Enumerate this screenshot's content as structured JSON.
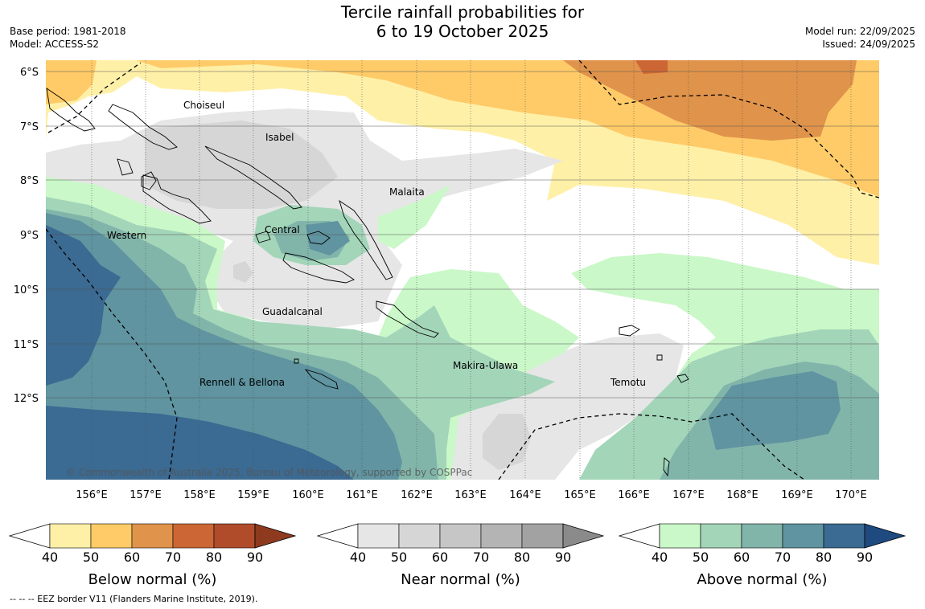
{
  "title": {
    "line1": "Tercile rainfall probabilities for",
    "line2": "6 to 19 October 2025"
  },
  "meta_left": {
    "base_period": "Base period: 1981-2018",
    "model": "Model: ACCESS-S2"
  },
  "meta_right": {
    "model_run": "Model run: 22/09/2025",
    "issued": "Issued: 24/09/2025"
  },
  "map": {
    "lat_labels": [
      "6°S",
      "7°S",
      "8°S",
      "9°S",
      "10°S",
      "11°S",
      "12°S"
    ],
    "lon_labels": [
      "156°E",
      "157°E",
      "158°E",
      "159°E",
      "160°E",
      "161°E",
      "162°E",
      "163°E",
      "164°E",
      "165°E",
      "166°E",
      "167°E",
      "168°E",
      "169°E",
      "170°E"
    ],
    "provinces": [
      {
        "name": "Choiseul"
      },
      {
        "name": "Isabel"
      },
      {
        "name": "Malaita"
      },
      {
        "name": "Western"
      },
      {
        "name": "Central"
      },
      {
        "name": "Guadalcanal"
      },
      {
        "name": "Makira-Ulawa"
      },
      {
        "name": "Rennell & Bellona"
      },
      {
        "name": "Temotu"
      }
    ],
    "copyright": "© Commonwealth of Australia 2025, Bureau of Meteorology, supported by COSPPac",
    "colors": {
      "ocean_bg": "#ffffff",
      "grid": "#555555",
      "coast": "#000000",
      "eez": "#000000"
    }
  },
  "colorbars": [
    {
      "label": "Below normal (%)",
      "ticks": [
        "40",
        "50",
        "60",
        "70",
        "80",
        "90"
      ],
      "colors": [
        "#fff0a8",
        "#fecb68",
        "#e0934a",
        "#cc6634",
        "#b04c2a",
        "#8e3a1e"
      ]
    },
    {
      "label": "Near normal (%)",
      "ticks": [
        "40",
        "50",
        "60",
        "70",
        "80",
        "90"
      ],
      "colors": [
        "#e6e6e6",
        "#d6d6d6",
        "#c6c6c6",
        "#b4b4b4",
        "#a2a2a2",
        "#8a8a8a"
      ]
    },
    {
      "label": "Above normal (%)",
      "ticks": [
        "40",
        "50",
        "60",
        "70",
        "80",
        "90"
      ],
      "colors": [
        "#caf8c8",
        "#a3d5b9",
        "#82b5aa",
        "#5f94a0",
        "#3b6a92",
        "#1e4a80"
      ]
    }
  ],
  "footer": "--  --  -- EEZ border V11 (Flanders Marine Institute, 2019)."
}
